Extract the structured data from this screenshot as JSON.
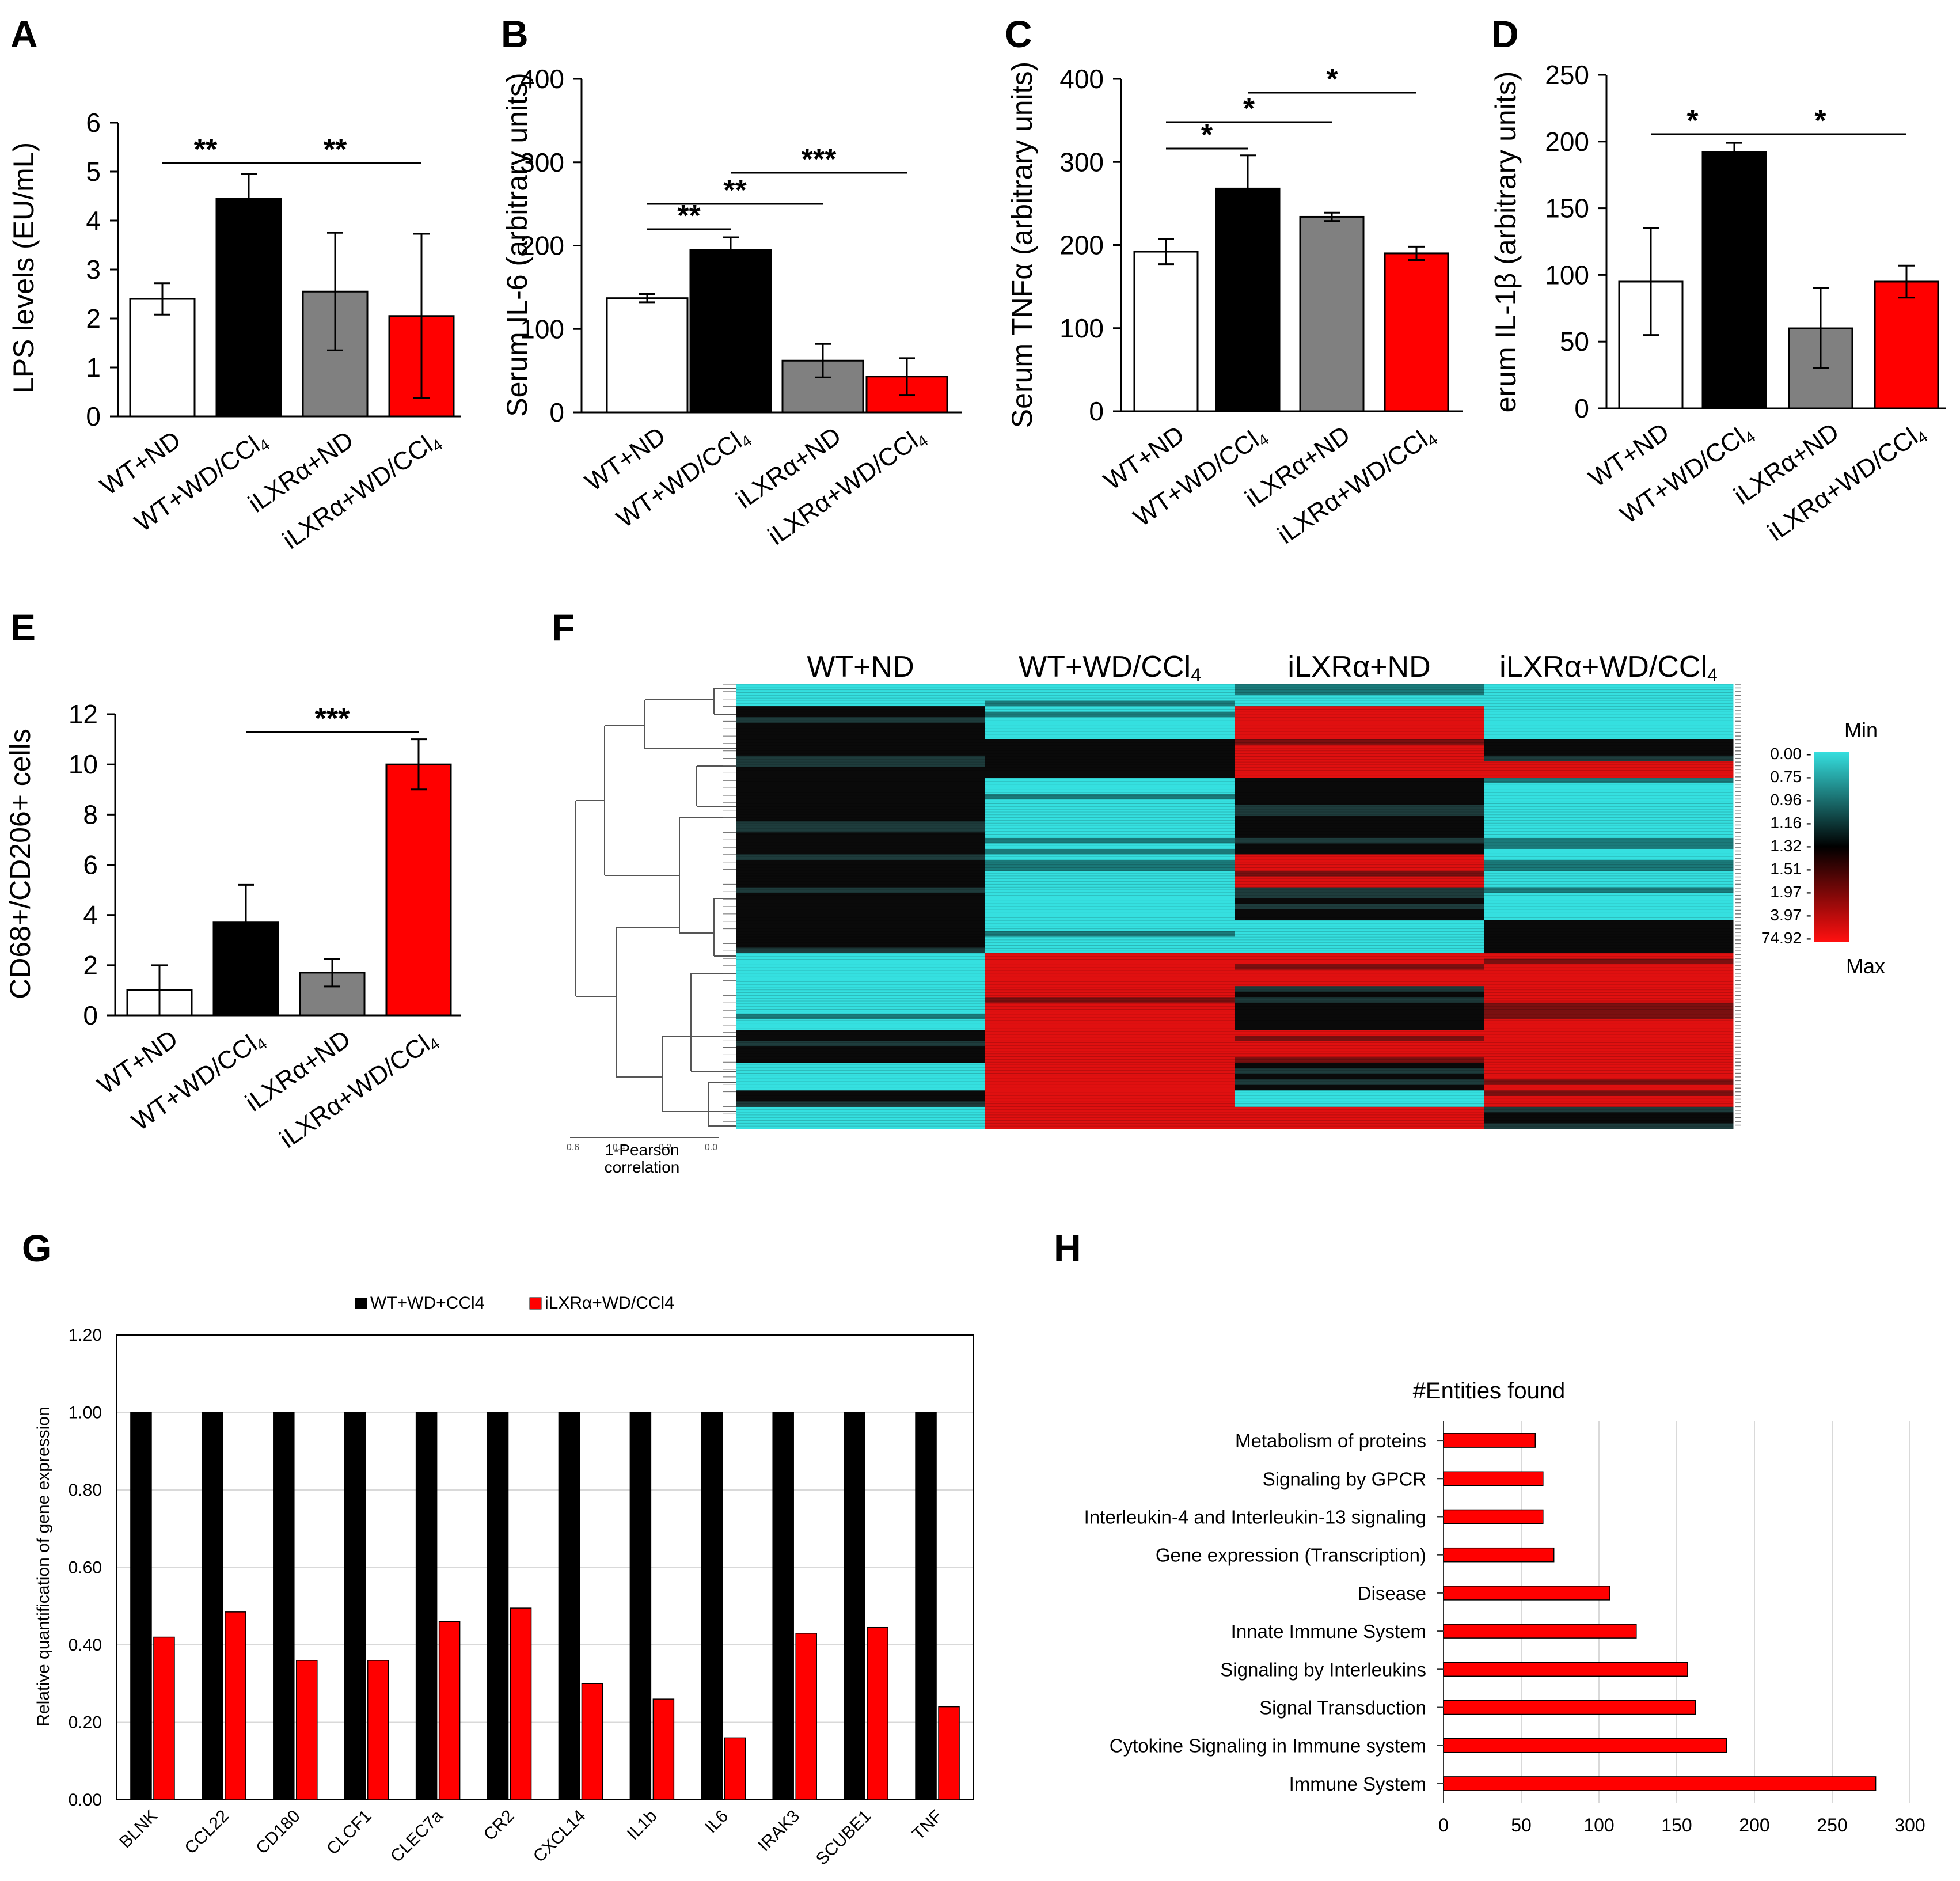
{
  "colors": {
    "white_bar": "#ffffff",
    "black_bar": "#000000",
    "grey_bar": "#808080",
    "red_bar": "#ff0000",
    "axis": "#000000"
  },
  "groups": [
    "WT+ND",
    "WT+WD/CCl4",
    "iLXRα+ND",
    "iLXRα+WD/CCl4"
  ],
  "heatmap": {
    "columns": [
      "WT+ND",
      "WT+WD/CCl4",
      "iLXRα+ND",
      "iLXRα+WD/CCl4"
    ],
    "legend_min": "Min",
    "legend_max": "Max",
    "legend_values": [
      "0.00 -",
      "0.75 -",
      "0.96 -",
      "1.16 -",
      "1.32 -",
      "1.51 -",
      "1.97 -",
      "3.97 -",
      "74.92 -"
    ],
    "dendrogram_label": [
      "1-Pearson",
      "correlation"
    ],
    "dendrogram_ticks": [
      "0.6",
      "0.4",
      "0.2",
      "0.0"
    ],
    "pattern": [
      {
        "rows": 4,
        "cols": [
          "teal",
          "teal",
          "teal",
          "teal"
        ]
      },
      {
        "rows": 6,
        "cols": [
          "black",
          "teal",
          "red",
          "teal"
        ]
      },
      {
        "rows": 4,
        "cols": [
          "black",
          "black",
          "red",
          "black"
        ]
      },
      {
        "rows": 3,
        "cols": [
          "black",
          "black",
          "red",
          "red"
        ]
      },
      {
        "rows": 6,
        "cols": [
          "black",
          "teal",
          "black",
          "teal"
        ]
      },
      {
        "rows": 8,
        "cols": [
          "black",
          "teal",
          "black",
          "teal"
        ]
      },
      {
        "rows": 6,
        "cols": [
          "black",
          "teal",
          "red",
          "teal"
        ]
      },
      {
        "rows": 6,
        "cols": [
          "black",
          "teal",
          "black",
          "teal"
        ]
      },
      {
        "rows": 6,
        "cols": [
          "black",
          "teal",
          "teal",
          "black"
        ]
      },
      {
        "rows": 6,
        "cols": [
          "teal",
          "red",
          "red",
          "red"
        ]
      },
      {
        "rows": 8,
        "cols": [
          "teal",
          "red",
          "black",
          "red"
        ]
      },
      {
        "rows": 6,
        "cols": [
          "black",
          "red",
          "red",
          "red"
        ]
      },
      {
        "rows": 5,
        "cols": [
          "teal",
          "red",
          "black",
          "red"
        ]
      },
      {
        "rows": 3,
        "cols": [
          "black",
          "red",
          "teal",
          "red"
        ]
      },
      {
        "rows": 4,
        "cols": [
          "teal",
          "red",
          "red",
          "black"
        ]
      }
    ]
  },
  "chart_data": [
    {
      "panel": "A",
      "type": "bar",
      "categories": [
        "WT+ND",
        "WT+WD/CCl4",
        "iLXRα+ND",
        "iLXRα+WD/CCl4"
      ],
      "values": [
        2.4,
        4.45,
        2.55,
        2.05
      ],
      "errors": [
        0.32,
        0.5,
        1.2,
        1.68
      ],
      "ylabel": "LPS levels (EU/mL)",
      "ylim": [
        0,
        6
      ],
      "yticks": [
        "0",
        "1",
        "2",
        "3",
        "4",
        "5",
        "6"
      ],
      "significance": [
        {
          "from": 0,
          "to": 1,
          "label": "**"
        },
        {
          "from": 1,
          "to": 3,
          "label": "**"
        }
      ]
    },
    {
      "panel": "B",
      "type": "bar",
      "categories": [
        "WT+ND",
        "WT+WD/CCl4",
        "iLXRα+ND",
        "iLXRα+WD/CCl4"
      ],
      "values": [
        137,
        195,
        62,
        43
      ],
      "errors": [
        5,
        15,
        20,
        22
      ],
      "ylabel": "Serum IL-6 (arbitrary units)",
      "ylim": [
        0,
        400
      ],
      "yticks": [
        "0",
        "100",
        "200",
        "300",
        "400"
      ],
      "significance": [
        {
          "from": 0,
          "to": 1,
          "label": "**"
        },
        {
          "from": 0,
          "to": 2,
          "label": "**"
        },
        {
          "from": 1,
          "to": 3,
          "label": "***"
        }
      ]
    },
    {
      "panel": "C",
      "type": "bar",
      "categories": [
        "WT+ND",
        "WT+WD/CCl4",
        "iLXRα+ND",
        "iLXRα+WD/CCl4"
      ],
      "values": [
        192,
        268,
        234,
        190
      ],
      "errors": [
        15,
        40,
        5,
        8
      ],
      "ylabel": "Serum TNFα (arbitrary units)",
      "ylim": [
        0,
        400
      ],
      "yticks": [
        "0",
        "100",
        "200",
        "300",
        "400"
      ],
      "significance": [
        {
          "from": 0,
          "to": 1,
          "label": "*"
        },
        {
          "from": 0,
          "to": 2,
          "label": "*"
        },
        {
          "from": 1,
          "to": 3,
          "label": "*"
        }
      ]
    },
    {
      "panel": "D",
      "type": "bar",
      "categories": [
        "WT+ND",
        "WT+WD/CCl4",
        "iLXRα+ND",
        "iLXRα+WD/CCl4"
      ],
      "values": [
        95,
        192,
        60,
        95
      ],
      "errors": [
        40,
        7,
        30,
        12
      ],
      "ylabel": "erum IL-1β (arbitrary units)",
      "ylim": [
        0,
        250
      ],
      "yticks": [
        "0",
        "50",
        "100",
        "150",
        "200",
        "250"
      ],
      "significance": [
        {
          "from": 0,
          "to": 1,
          "label": "*"
        },
        {
          "from": 1,
          "to": 3,
          "label": "*"
        }
      ]
    },
    {
      "panel": "E",
      "type": "bar",
      "categories": [
        "WT+ND",
        "WT+WD/CCl4",
        "iLXRα+ND",
        "iLXRα+WD/CCl4"
      ],
      "values": [
        1.0,
        3.7,
        1.7,
        10.0
      ],
      "errors": [
        1.0,
        1.5,
        0.55,
        1.0
      ],
      "ylabel": "CD68+/CD206+ cells",
      "ylim": [
        0,
        12
      ],
      "yticks": [
        "0",
        "2",
        "4",
        "6",
        "8",
        "10",
        "12"
      ],
      "significance": [
        {
          "from": 1,
          "to": 3,
          "label": "***"
        }
      ]
    },
    {
      "panel": "G",
      "type": "bar",
      "categories": [
        "BLNK",
        "CCL22",
        "CD180",
        "CLCF1",
        "CLEC7a",
        "CR2",
        "CXCL14",
        "IL1b",
        "IL6",
        "IRAK3",
        "SCUBE1",
        "TNF"
      ],
      "series": [
        {
          "name": "WT+WD+CCl4",
          "values": [
            1,
            1,
            1,
            1,
            1,
            1,
            1,
            1,
            1,
            1,
            1,
            1
          ]
        },
        {
          "name": "iLXRα+WD/CCl4",
          "values": [
            0.42,
            0.485,
            0.36,
            0.36,
            0.46,
            0.495,
            0.3,
            0.26,
            0.16,
            0.43,
            0.445,
            0.24
          ]
        }
      ],
      "ylabel": "Relative quantification of gene expression",
      "ylim": [
        0,
        1.2
      ],
      "yticks": [
        "0.00",
        "0.20",
        "0.40",
        "0.60",
        "0.80",
        "1.00",
        "1.20"
      ]
    },
    {
      "panel": "H",
      "type": "bar",
      "orientation": "horizontal",
      "title": "#Entities found",
      "categories": [
        "Metabolism of proteins",
        "Signaling by GPCR",
        "Interleukin-4 and Interleukin-13 signaling",
        "Gene expression (Transcription)",
        "Disease",
        "Innate Immune System",
        "Signaling by Interleukins",
        "Signal Transduction",
        "Cytokine Signaling in Immune system",
        "Immune System"
      ],
      "values": [
        59,
        64,
        64,
        71,
        107,
        124,
        157,
        162,
        182,
        278
      ],
      "xlim": [
        0,
        300
      ],
      "xticks": [
        "0",
        "50",
        "100",
        "150",
        "200",
        "250",
        "300"
      ]
    }
  ],
  "panel_letters": [
    "A",
    "B",
    "C",
    "D",
    "E",
    "F",
    "G",
    "H"
  ]
}
